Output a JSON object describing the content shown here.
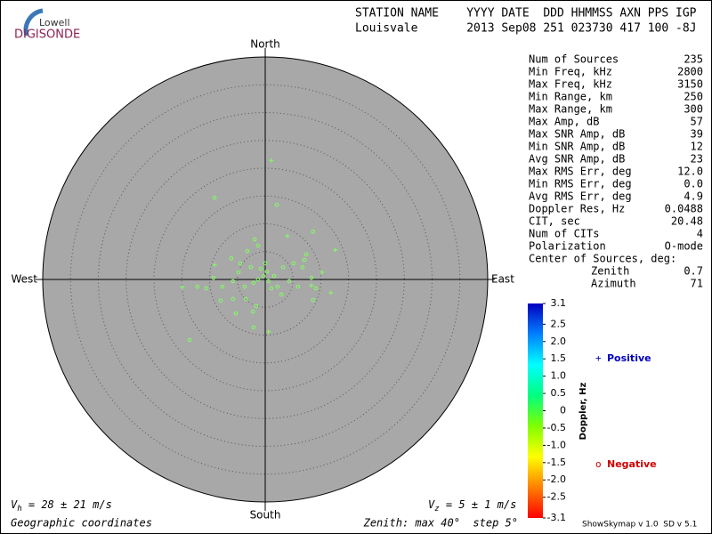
{
  "logo": {
    "top": "Lowell",
    "bottom": "DIGISONDE"
  },
  "header": {
    "labels": "STATION NAME    YYYY DATE  DDD HHMMSS AXN PPS IGP",
    "values": "Louisvale       2013 Sep08 251 023730 417 100 -8J"
  },
  "stats": [
    [
      "Num of Sources",
      "235"
    ],
    [
      "Min Freq, kHz",
      "2800"
    ],
    [
      "Max Freq, kHz",
      "3150"
    ],
    [
      "Min Range, km",
      "250"
    ],
    [
      "Max Range, km",
      "300"
    ],
    [
      "Max Amp, dB",
      "57"
    ],
    [
      "Max SNR Amp, dB",
      "39"
    ],
    [
      "Min SNR Amp, dB",
      "12"
    ],
    [
      "Avg SNR Amp, dB",
      "23"
    ],
    [
      "Max RMS Err, deg",
      "12.0"
    ],
    [
      "Min RMS Err, deg",
      "0.0"
    ],
    [
      "Avg RMS Err, deg",
      "4.9"
    ],
    [
      "Doppler Res, Hz",
      "0.0488"
    ],
    [
      "CIT, sec",
      "20.48"
    ],
    [
      "Num of CITs",
      "4"
    ],
    [
      "Polarization",
      "O-mode"
    ]
  ],
  "center": {
    "title": "Center of Sources, deg:",
    "rows": [
      [
        "Zenith",
        "0.7"
      ],
      [
        "Azimuth",
        "71"
      ]
    ]
  },
  "footer": {
    "vh": [
      "V",
      "h",
      " = 28 ± 21 m/s"
    ],
    "vz": [
      "V",
      "z",
      " = 5 ± 1 m/s"
    ],
    "coords": "Geographic coordinates",
    "zenith": "Zenith: max 40°  step 5°",
    "version": "ShowSkymap v 1.0  SD v 5.1"
  },
  "chart_data": {
    "type": "skymap",
    "directions": {
      "north": "North",
      "south": "South",
      "east": "East",
      "west": "West"
    },
    "xlim": [
      -40,
      40
    ],
    "ylim": [
      -40,
      40
    ],
    "rings": [
      5,
      10,
      15,
      20,
      25,
      30,
      35,
      40
    ],
    "series": [
      {
        "name": "Positive",
        "marker": "+",
        "legend_color": "#0000c0",
        "color": "#80ff60",
        "x": [
          1.1,
          4,
          12.6,
          10.2,
          11.8,
          0.6,
          -14.9,
          -9.1,
          8.3
        ],
        "values": [
          21.4,
          7.8,
          5.3,
          1.3,
          -2.4,
          -9.4,
          -1.4,
          2.6,
          -1.1
        ]
      },
      {
        "name": "Negative",
        "marker": "o",
        "legend_color": "#d00000",
        "color": "#80ff60",
        "x": [
          -9.1,
          -13.6,
          2.1,
          8.6,
          -1.9,
          -1.3,
          -3.2,
          -6.1,
          -4.5,
          -2.6,
          -0.8,
          0.3,
          -0.3,
          -1.3,
          0.6,
          1.6,
          -2.1,
          -3.7,
          -5.8,
          -7.7,
          -10.6,
          -12.2,
          -8,
          -5.8,
          -3.5,
          -1.6,
          -2.2,
          -2.1,
          -5.3,
          3.2,
          5.1,
          7,
          6.7,
          7.4,
          2.2,
          4.3,
          5.9,
          8.3,
          8.6,
          9.1,
          -4.8,
          0,
          1.1,
          2.9,
          -9.3
        ],
        "values": [
          14.7,
          -10.9,
          13.4,
          8.6,
          7.2,
          6.1,
          5.1,
          3.8,
          2.9,
          2.2,
          1.9,
          1.4,
          0.6,
          0,
          -0.3,
          0.6,
          -0.6,
          -1.3,
          -0.3,
          -1.3,
          -1.6,
          -1.3,
          -3.8,
          -3.5,
          -3.5,
          -4.8,
          -5.8,
          -8.6,
          -6.1,
          2.2,
          2.9,
          3.5,
          2.2,
          4.5,
          -1.3,
          -0.3,
          -1.3,
          0.3,
          -3.7,
          -1.6,
          1.3,
          2.9,
          -1.6,
          -2.7,
          0.3
        ]
      }
    ],
    "colorbar": {
      "label": "Doppler, Hz",
      "lim": [
        -3.1,
        3.1
      ],
      "ticks": [
        3.1,
        2.5,
        {
          "value": 2,
          "label": "2.0"
        },
        1.5,
        {
          "value": 1,
          "label": "1.0"
        },
        0.5,
        0,
        -0.5,
        {
          "value": -1,
          "label": "-1.0"
        },
        -1.5,
        {
          "value": -2,
          "label": "-2.0"
        },
        -2.5,
        -3.1
      ]
    }
  }
}
